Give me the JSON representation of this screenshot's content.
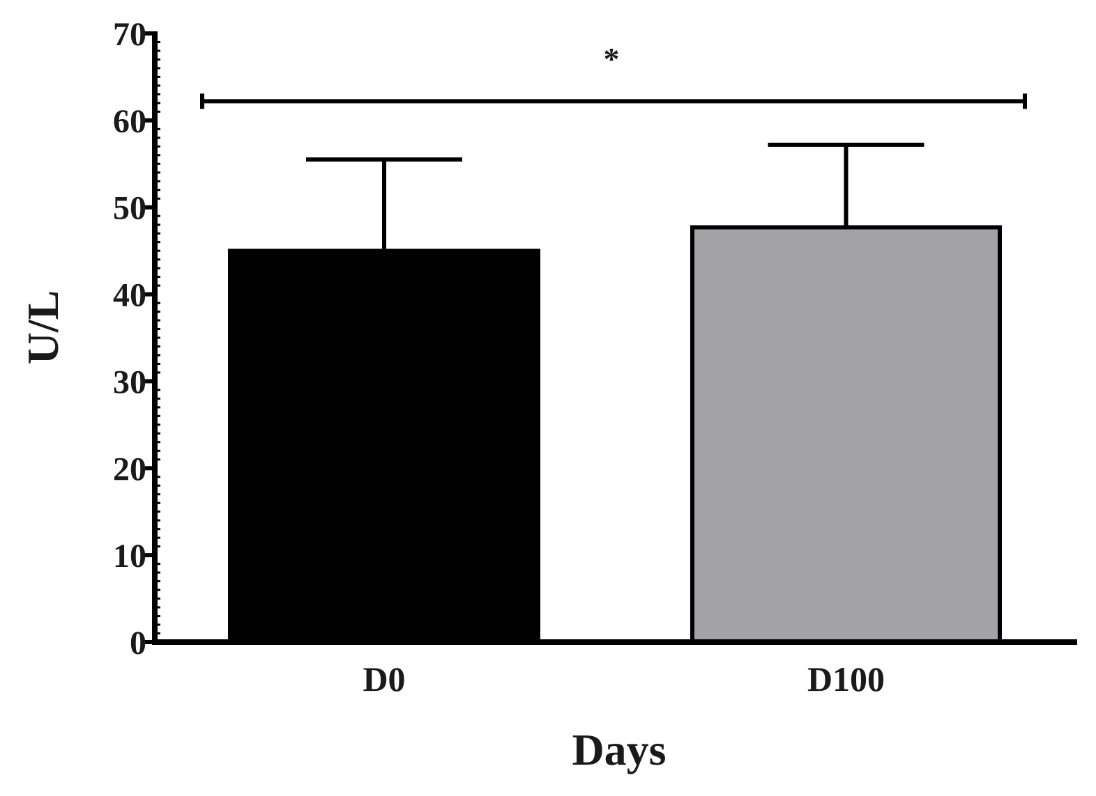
{
  "chart_data": {
    "type": "bar",
    "categories": [
      "D0",
      "D100"
    ],
    "values": [
      45,
      47.7
    ],
    "errors": [
      10.5,
      9.5
    ],
    "xlabel": "Days",
    "ylabel": "U/L",
    "ylim": [
      0,
      70
    ],
    "yticks": [
      "0",
      "10",
      "20",
      "30",
      "40",
      "50",
      "60",
      "70"
    ],
    "grid": false,
    "colors": [
      "#000000",
      "#a3a3a7"
    ],
    "significance": {
      "label": "*",
      "from": "D0",
      "to": "D100",
      "y": 62.2
    }
  }
}
